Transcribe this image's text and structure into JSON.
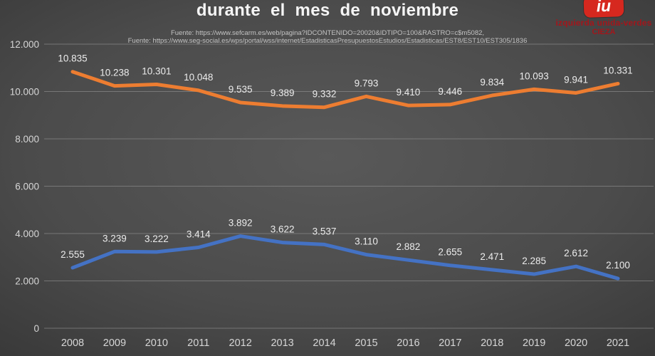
{
  "header": {
    "title": "durante el mes de noviembre",
    "sources": [
      "Fuente: https://www.sefcarm.es/web/pagina?IDCONTENIDO=20020&IDTIPO=100&RASTRO=c$m5082,",
      "Fuente: https://www.seg-social.es/wps/portal/wss/internet/EstadisticasPresupuestosEstudios/Estadisticas/EST8/EST10/EST305/1836"
    ]
  },
  "logo": {
    "badge_text": "iu",
    "line1": "izquierda unida-verdes",
    "line2": "CIEZA",
    "red": "#d6281f",
    "dark_red": "#a3161b"
  },
  "chart_data": {
    "type": "line",
    "title": "durante el mes de noviembre",
    "xlabel": "",
    "ylabel": "",
    "ylim": [
      0,
      12000
    ],
    "grid": true,
    "legend": "none",
    "categories": [
      "2008",
      "2009",
      "2010",
      "2011",
      "2012",
      "2013",
      "2014",
      "2015",
      "2016",
      "2017",
      "2018",
      "2019",
      "2020",
      "2021"
    ],
    "yticks": [
      {
        "value": 0,
        "label": "0"
      },
      {
        "value": 2000,
        "label": "2.000"
      },
      {
        "value": 4000,
        "label": "4.000"
      },
      {
        "value": 6000,
        "label": "6.000"
      },
      {
        "value": 8000,
        "label": "8.000"
      },
      {
        "value": 10000,
        "label": "10.000"
      },
      {
        "value": 12000,
        "label": "12.000"
      }
    ],
    "series": [
      {
        "name": "serie-superior-naranja",
        "color": "#ED7D31",
        "values": [
          10835,
          10238,
          10301,
          10048,
          9535,
          9389,
          9332,
          9793,
          9410,
          9446,
          9834,
          10093,
          9941,
          10331
        ],
        "labels": [
          "10.835",
          "10.238",
          "10.301",
          "10.048",
          "9.535",
          "9.389",
          "9.332",
          "9.793",
          "9.410",
          "9.446",
          "9.834",
          "10.093",
          "9.941",
          "10.331"
        ]
      },
      {
        "name": "serie-inferior-azul",
        "color": "#4472C4",
        "values": [
          2555,
          3239,
          3222,
          3414,
          3892,
          3622,
          3537,
          3110,
          2882,
          2655,
          2471,
          2285,
          2612,
          2100
        ],
        "labels": [
          "2.555",
          "3.239",
          "3.222",
          "3.414",
          "3.892",
          "3.622",
          "3.537",
          "3.110",
          "2.882",
          "2.655",
          "2.471",
          "2.285",
          "2.612",
          "2.100"
        ]
      }
    ],
    "style": {
      "gridline_color": "#8f8f8f",
      "axis_label_color": "#d6d6d6",
      "data_label_color": "#ececec"
    }
  }
}
